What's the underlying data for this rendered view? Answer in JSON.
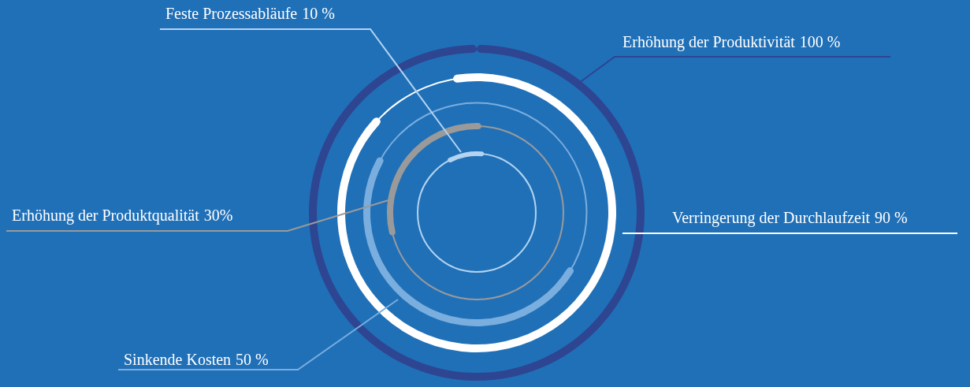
{
  "chart_data": {
    "type": "other",
    "categories": [
      "Erhöhung der Produktivität",
      "Verringerung der Durchlaufzeit",
      "Sinkende Kosten",
      "Erhöhung der Produktqualität",
      "Feste Prozessabläufe"
    ],
    "values": [
      100,
      90,
      50,
      30,
      10
    ],
    "value_labels": [
      "100 %",
      "90 %",
      "50 %",
      "30%",
      "10 %"
    ],
    "colors": [
      "#2e4592",
      "#ffffff",
      "#7aaede",
      "#9a9a9a",
      "#b3d4f0"
    ]
  }
}
